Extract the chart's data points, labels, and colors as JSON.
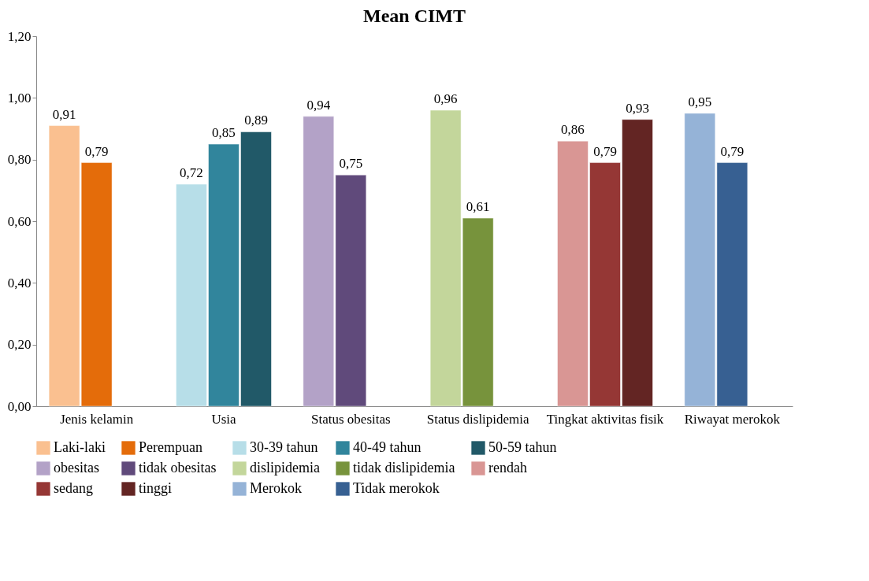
{
  "chart_data": {
    "type": "bar",
    "title": "Mean CIMT",
    "categories": [
      "Jenis kelamin",
      "Usia",
      "Status obesitas",
      "Status dislipidemia",
      "Tingkat aktivitas fisik",
      "Riwayat merokok"
    ],
    "series": [
      {
        "name": "Laki-laki",
        "color": "#fac090",
        "values": [
          0.91,
          null,
          null,
          null,
          null,
          null
        ],
        "value_labels": [
          "0,91",
          null,
          null,
          null,
          null,
          null
        ]
      },
      {
        "name": "Perempuan",
        "color": "#e46c0a",
        "values": [
          0.79,
          null,
          null,
          null,
          null,
          null
        ],
        "value_labels": [
          "0,79",
          null,
          null,
          null,
          null,
          null
        ]
      },
      {
        "name": "30-39 tahun",
        "color": "#b7dee8",
        "values": [
          null,
          0.72,
          null,
          null,
          null,
          null
        ],
        "value_labels": [
          null,
          "0,72",
          null,
          null,
          null,
          null
        ]
      },
      {
        "name": "40-49 tahun",
        "color": "#31859c",
        "values": [
          null,
          0.85,
          null,
          null,
          null,
          null
        ],
        "value_labels": [
          null,
          "0,85",
          null,
          null,
          null,
          null
        ]
      },
      {
        "name": "50-59 tahun",
        "color": "#215968",
        "values": [
          null,
          0.89,
          null,
          null,
          null,
          null
        ],
        "value_labels": [
          null,
          "0,89",
          null,
          null,
          null,
          null
        ]
      },
      {
        "name": "obesitas",
        "color": "#b3a2c7",
        "values": [
          null,
          null,
          0.94,
          null,
          null,
          null
        ],
        "value_labels": [
          null,
          null,
          "0,94",
          null,
          null,
          null
        ]
      },
      {
        "name": "tidak obesitas",
        "color": "#604a7b",
        "values": [
          null,
          null,
          0.75,
          null,
          null,
          null
        ],
        "value_labels": [
          null,
          null,
          "0,75",
          null,
          null,
          null
        ]
      },
      {
        "name": "dislipidemia",
        "color": "#c3d69b",
        "values": [
          null,
          null,
          null,
          0.96,
          null,
          null
        ],
        "value_labels": [
          null,
          null,
          null,
          "0,96",
          null,
          null
        ]
      },
      {
        "name": "tidak dislipidemia",
        "color": "#77933c",
        "values": [
          null,
          null,
          null,
          0.61,
          null,
          null
        ],
        "value_labels": [
          null,
          null,
          null,
          "0,61",
          null,
          null
        ]
      },
      {
        "name": "rendah",
        "color": "#d99694",
        "values": [
          null,
          null,
          null,
          null,
          0.86,
          null
        ],
        "value_labels": [
          null,
          null,
          null,
          null,
          "0,86",
          null
        ]
      },
      {
        "name": "sedang",
        "color": "#953735",
        "values": [
          null,
          null,
          null,
          null,
          0.79,
          null
        ],
        "value_labels": [
          null,
          null,
          null,
          null,
          "0,79",
          null
        ]
      },
      {
        "name": "tinggi",
        "color": "#632523",
        "values": [
          null,
          null,
          null,
          null,
          0.93,
          null
        ],
        "value_labels": [
          null,
          null,
          null,
          null,
          "0,93",
          null
        ]
      },
      {
        "name": "Merokok",
        "color": "#95b3d7",
        "values": [
          null,
          null,
          null,
          null,
          null,
          0.95
        ],
        "value_labels": [
          null,
          null,
          null,
          null,
          null,
          "0,95"
        ]
      },
      {
        "name": "Tidak merokok",
        "color": "#376092",
        "values": [
          null,
          null,
          null,
          null,
          null,
          0.79
        ],
        "value_labels": [
          null,
          null,
          null,
          null,
          null,
          "0,79"
        ]
      }
    ],
    "ylim": [
      0,
      1.2
    ],
    "yticks": [
      {
        "value": 0,
        "label": "0,00"
      },
      {
        "value": 0.2,
        "label": "0,20"
      },
      {
        "value": 0.4,
        "label": "0,40"
      },
      {
        "value": 0.6,
        "label": "0,60"
      },
      {
        "value": 0.8,
        "label": "0,80"
      },
      {
        "value": 1.0,
        "label": "1,00"
      },
      {
        "value": 1.2,
        "label": "1,20"
      }
    ],
    "legend": "bottom"
  }
}
